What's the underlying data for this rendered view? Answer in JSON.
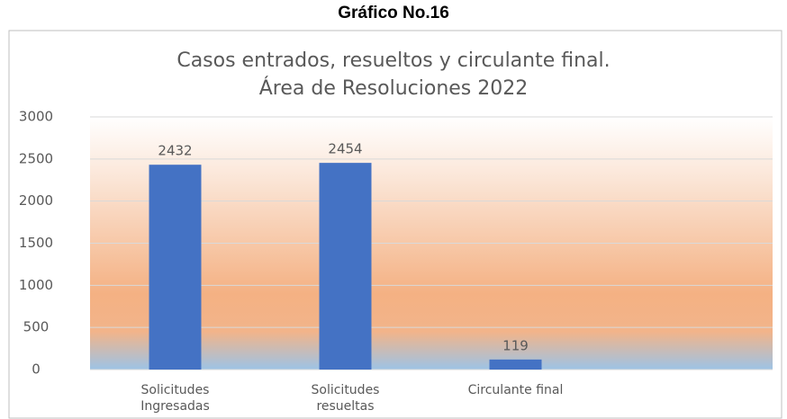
{
  "heading": "Gráfico No.16",
  "chart_data": {
    "type": "bar",
    "title": [
      "Casos entrados, resueltos y circulante final.",
      "Área de Resoluciones 2022"
    ],
    "categories": [
      "Solicitudes Ingresadas",
      "Solicitudes resueltas",
      "Circulante final"
    ],
    "values": [
      2432,
      2454,
      119
    ],
    "color": "#4472c4",
    "ylim": [
      0,
      3000
    ],
    "yticks": [
      0,
      500,
      1000,
      1500,
      2000,
      2500,
      3000
    ],
    "grid": true
  }
}
